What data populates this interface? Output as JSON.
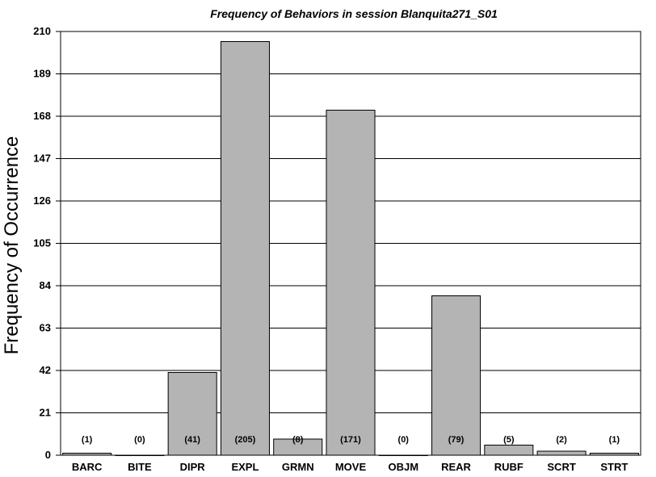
{
  "chart_data": {
    "type": "bar",
    "title": "Frequency of Behaviors in session Blanquita271_S01",
    "xlabel": "",
    "ylabel": "Frequency of Occurrence",
    "categories": [
      "BARC",
      "BITE",
      "DIPR",
      "EXPL",
      "GRMN",
      "MOVE",
      "OBJM",
      "REAR",
      "RUBF",
      "SCRT",
      "STRT"
    ],
    "values": [
      1,
      0,
      41,
      205,
      8,
      171,
      0,
      79,
      5,
      2,
      1
    ],
    "data_labels": [
      "(1)",
      "(0)",
      "(41)",
      "(205)",
      "(8)",
      "(171)",
      "(0)",
      "(79)",
      "(5)",
      "(2)",
      "(1)"
    ],
    "ylim": [
      0,
      210
    ],
    "yticks": [
      0,
      21,
      42,
      63,
      84,
      105,
      126,
      147,
      168,
      189,
      210
    ],
    "grid": true,
    "legend": "none",
    "bar_color": "#b4b4b4",
    "bar_edge_color": "#000000"
  }
}
